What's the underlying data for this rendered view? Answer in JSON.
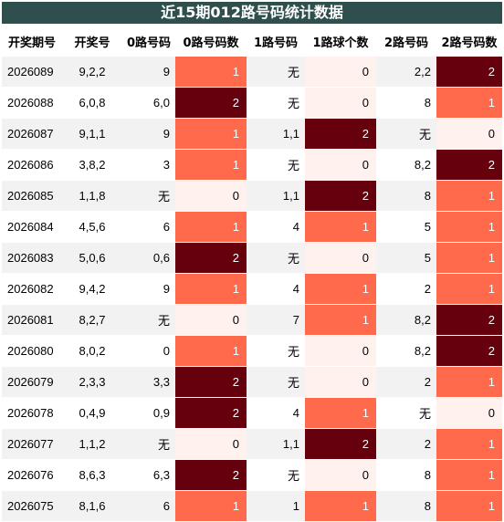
{
  "title": "近15期012路号码统计数据",
  "columns": [
    "开奖期号",
    "开奖号",
    "0路号码",
    "0路号码数",
    "1路号码",
    "1路球个数",
    "2路号码",
    "2路号码数"
  ],
  "rows": [
    {
      "issue": "2026089",
      "draw": "9,2,2",
      "r0": "9",
      "c0": "1",
      "r1": "无",
      "c1": "0",
      "r2": "2,2",
      "c2": "2"
    },
    {
      "issue": "2026088",
      "draw": "6,0,8",
      "r0": "6,0",
      "c0": "2",
      "r1": "无",
      "c1": "0",
      "r2": "8",
      "c2": "1"
    },
    {
      "issue": "2026087",
      "draw": "9,1,1",
      "r0": "9",
      "c0": "1",
      "r1": "1,1",
      "c1": "2",
      "r2": "无",
      "c2": "0"
    },
    {
      "issue": "2026086",
      "draw": "3,8,2",
      "r0": "3",
      "c0": "1",
      "r1": "无",
      "c1": "0",
      "r2": "8,2",
      "c2": "2"
    },
    {
      "issue": "2026085",
      "draw": "1,1,8",
      "r0": "无",
      "c0": "0",
      "r1": "1,1",
      "c1": "2",
      "r2": "8",
      "c2": "1"
    },
    {
      "issue": "2026084",
      "draw": "4,5,6",
      "r0": "6",
      "c0": "1",
      "r1": "4",
      "c1": "1",
      "r2": "5",
      "c2": "1"
    },
    {
      "issue": "2026083",
      "draw": "5,0,6",
      "r0": "0,6",
      "c0": "2",
      "r1": "无",
      "c1": "0",
      "r2": "5",
      "c2": "1"
    },
    {
      "issue": "2026082",
      "draw": "9,4,2",
      "r0": "9",
      "c0": "1",
      "r1": "4",
      "c1": "1",
      "r2": "2",
      "c2": "1"
    },
    {
      "issue": "2026081",
      "draw": "8,2,7",
      "r0": "无",
      "c0": "0",
      "r1": "7",
      "c1": "1",
      "r2": "8,2",
      "c2": "2"
    },
    {
      "issue": "2026080",
      "draw": "8,0,2",
      "r0": "0",
      "c0": "1",
      "r1": "无",
      "c1": "0",
      "r2": "8,2",
      "c2": "2"
    },
    {
      "issue": "2026079",
      "draw": "2,3,3",
      "r0": "3,3",
      "c0": "2",
      "r1": "无",
      "c1": "0",
      "r2": "2",
      "c2": "1"
    },
    {
      "issue": "2026078",
      "draw": "0,4,9",
      "r0": "0,9",
      "c0": "2",
      "r1": "4",
      "c1": "1",
      "r2": "无",
      "c2": "0"
    },
    {
      "issue": "2026077",
      "draw": "1,1,2",
      "r0": "无",
      "c0": "0",
      "r1": "1,1",
      "c1": "2",
      "r2": "2",
      "c2": "1"
    },
    {
      "issue": "2026076",
      "draw": "8,6,3",
      "r0": "6,3",
      "c0": "2",
      "r1": "无",
      "c1": "0",
      "r2": "8",
      "c2": "1"
    },
    {
      "issue": "2026075",
      "draw": "8,1,6",
      "r0": "6",
      "c0": "1",
      "r1": "1",
      "c1": "1",
      "r2": "8",
      "c2": "1"
    }
  ],
  "heat_colors": {
    "0": "#fff2ee",
    "1": "#ff6a4c",
    "2": "#67000d"
  }
}
